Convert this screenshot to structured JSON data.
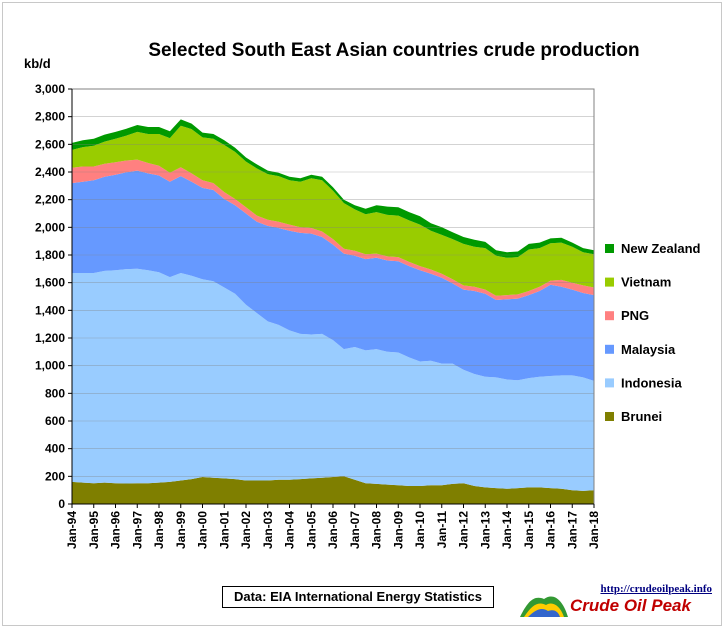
{
  "chart_data": {
    "type": "area",
    "stacked": true,
    "title": "Selected South East Asian countries crude production",
    "ylabel": "kb/d",
    "ylim": [
      0,
      3000
    ],
    "yticks": [
      0,
      200,
      400,
      600,
      800,
      1000,
      1200,
      1400,
      1600,
      1800,
      2000,
      2200,
      2400,
      2600,
      2800,
      3000
    ],
    "ytick_labels": [
      "0",
      "200",
      "400",
      "600",
      "800",
      "1,000",
      "1,200",
      "1,400",
      "1,600",
      "1,800",
      "2,000",
      "2,200",
      "2,400",
      "2,600",
      "2,800",
      "3,000"
    ],
    "xtick_labels": [
      "Jan-94",
      "Jan-95",
      "Jan-96",
      "Jan-97",
      "Jan-98",
      "Jan-99",
      "Jan-00",
      "Jan-01",
      "Jan-02",
      "Jan-03",
      "Jan-04",
      "Jan-05",
      "Jan-06",
      "Jan-07",
      "Jan-08",
      "Jan-09",
      "Jan-10",
      "Jan-11",
      "Jan-12",
      "Jan-13",
      "Jan-14",
      "Jan-15",
      "Jan-16",
      "Jan-17",
      "Jan-18"
    ],
    "x_dates": [
      "1994-01",
      "1994-07",
      "1995-01",
      "1995-07",
      "1996-01",
      "1996-07",
      "1997-01",
      "1997-07",
      "1998-01",
      "1998-07",
      "1999-01",
      "1999-07",
      "2000-01",
      "2000-07",
      "2001-01",
      "2001-07",
      "2002-01",
      "2002-07",
      "2003-01",
      "2003-07",
      "2004-01",
      "2004-07",
      "2005-01",
      "2005-07",
      "2006-01",
      "2006-07",
      "2007-01",
      "2007-07",
      "2008-01",
      "2008-07",
      "2009-01",
      "2009-07",
      "2010-01",
      "2010-07",
      "2011-01",
      "2011-07",
      "2012-01",
      "2012-07",
      "2013-01",
      "2013-07",
      "2014-01",
      "2014-07",
      "2015-01",
      "2015-07",
      "2016-01",
      "2016-07",
      "2017-01",
      "2017-07",
      "2018-01"
    ],
    "grid": true,
    "legend_position": "right",
    "series": [
      {
        "name": "Brunei",
        "color": "#7f7f00",
        "values": [
          160,
          155,
          150,
          155,
          150,
          148,
          150,
          150,
          155,
          160,
          170,
          180,
          195,
          190,
          185,
          180,
          170,
          170,
          170,
          175,
          175,
          180,
          185,
          190,
          195,
          200,
          175,
          150,
          145,
          140,
          135,
          130,
          130,
          135,
          135,
          145,
          150,
          130,
          120,
          115,
          110,
          115,
          120,
          120,
          115,
          110,
          100,
          95,
          100
        ]
      },
      {
        "name": "Indonesia",
        "color": "#99ccff",
        "values": [
          1510,
          1515,
          1520,
          1530,
          1540,
          1550,
          1550,
          1540,
          1520,
          1480,
          1500,
          1470,
          1430,
          1420,
          1380,
          1340,
          1270,
          1210,
          1150,
          1120,
          1080,
          1050,
          1040,
          1040,
          990,
          920,
          960,
          960,
          975,
          960,
          960,
          930,
          900,
          900,
          880,
          870,
          820,
          810,
          800,
          800,
          790,
          780,
          790,
          800,
          810,
          820,
          830,
          820,
          790
        ]
      },
      {
        "name": "Malaysia",
        "color": "#6699ff",
        "values": [
          650,
          660,
          670,
          680,
          690,
          700,
          710,
          700,
          700,
          690,
          700,
          680,
          660,
          660,
          640,
          640,
          660,
          660,
          690,
          700,
          720,
          730,
          730,
          700,
          690,
          690,
          660,
          660,
          660,
          660,
          660,
          660,
          660,
          630,
          620,
          580,
          580,
          600,
          600,
          560,
          580,
          590,
          600,
          620,
          660,
          640,
          620,
          610,
          620
        ]
      },
      {
        "name": "PNG",
        "color": "#ff8080",
        "values": [
          110,
          110,
          100,
          95,
          90,
          85,
          80,
          75,
          70,
          65,
          65,
          60,
          55,
          50,
          50,
          45,
          45,
          45,
          45,
          45,
          45,
          40,
          40,
          40,
          40,
          35,
          35,
          35,
          30,
          30,
          30,
          30,
          30,
          30,
          30,
          30,
          30,
          30,
          30,
          30,
          30,
          30,
          30,
          30,
          30,
          50,
          50,
          55,
          55
        ]
      },
      {
        "name": "Vietnam",
        "color": "#99cc00",
        "values": [
          130,
          140,
          150,
          160,
          170,
          180,
          200,
          210,
          230,
          250,
          300,
          320,
          310,
          320,
          340,
          340,
          330,
          340,
          330,
          330,
          320,
          330,
          360,
          370,
          350,
          330,
          300,
          290,
          300,
          300,
          300,
          300,
          300,
          280,
          280,
          290,
          300,
          290,
          300,
          290,
          270,
          270,
          300,
          280,
          270,
          270,
          260,
          240,
          240
        ]
      },
      {
        "name": "New Zealand",
        "color": "#009900",
        "values": [
          50,
          50,
          50,
          50,
          50,
          50,
          50,
          50,
          50,
          50,
          45,
          40,
          35,
          35,
          35,
          30,
          30,
          30,
          25,
          25,
          25,
          25,
          25,
          25,
          25,
          25,
          30,
          40,
          50,
          60,
          60,
          60,
          60,
          55,
          55,
          50,
          50,
          50,
          45,
          40,
          40,
          40,
          40,
          40,
          35,
          35,
          30,
          30,
          30
        ]
      }
    ],
    "legend_order": [
      "New Zealand",
      "Vietnam",
      "PNG",
      "Malaysia",
      "Indonesia",
      "Brunei"
    ]
  },
  "source_note": "Data: EIA International Energy Statistics",
  "brand": {
    "url": "http://crudeoilpeak.info",
    "name": "Crude Oil Peak"
  }
}
